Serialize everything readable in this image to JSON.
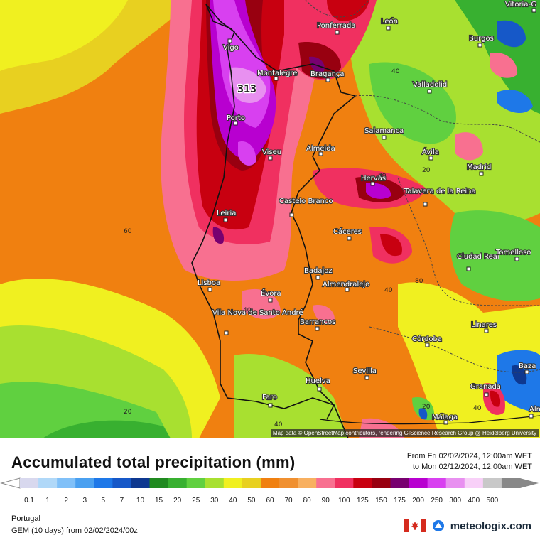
{
  "title": "Accumulated total precipitation (mm)",
  "period": {
    "from": "From Fri 02/02/2024, 12:00am WET",
    "to": "to Mon 02/12/2024, 12:00am WET"
  },
  "region": "Portugal",
  "model": "GEM (10 days) from  02/02/2024/00z",
  "brand": "meteologix.com",
  "attribution": "Map data © OpenStreetMap contributors, rendering GIScience Research Group @ Heidelberg University",
  "max_value": "313",
  "legend": {
    "labels": [
      "0.1",
      "1",
      "2",
      "3",
      "5",
      "7",
      "10",
      "15",
      "20",
      "25",
      "30",
      "40",
      "50",
      "60",
      "70",
      "80",
      "90",
      "100",
      "125",
      "150",
      "175",
      "200",
      "250",
      "300",
      "400",
      "500"
    ],
    "colors": [
      "#d8d8ee",
      "#b0d8f8",
      "#80c0f8",
      "#4aa0f0",
      "#1e78e8",
      "#1658c8",
      "#0e3890",
      "#208a20",
      "#38b030",
      "#60d040",
      "#a8e030",
      "#f0f020",
      "#e8d020",
      "#f08010",
      "#f09030",
      "#f8b060",
      "#f87090",
      "#f03060",
      "#c80010",
      "#980010",
      "#780070",
      "#b800d0",
      "#d840f0",
      "#e890f0",
      "#f8d0f8",
      "#c8c8c8",
      "#888888"
    ]
  },
  "contour_labels": [
    "60",
    "40",
    "40",
    "40",
    "40",
    "80",
    "20",
    "20",
    "20",
    "40",
    "80"
  ],
  "cities": [
    "Vigo",
    "Montalegre",
    "Bragança",
    "Porto",
    "Viseu",
    "Almeida",
    "Leiria",
    "Castelo Branco",
    "Lisboa",
    "Évora",
    "Vila Nova de Santo André",
    "Faro",
    "Ponferrada",
    "León",
    "Burgos",
    "Valladolid",
    "Salamanca",
    "Ávila",
    "Madrid",
    "Hervás",
    "Talavera de la Reina",
    "Cáceres",
    "Badajoz",
    "Almendralejo",
    "Ciudad Real",
    "Tomelloso",
    "Barrancos",
    "Córdoba",
    "Linares",
    "Huelva",
    "Sevilla",
    "Granada",
    "Málaga",
    "Baza",
    "Vitoria-G",
    "Alm"
  ]
}
